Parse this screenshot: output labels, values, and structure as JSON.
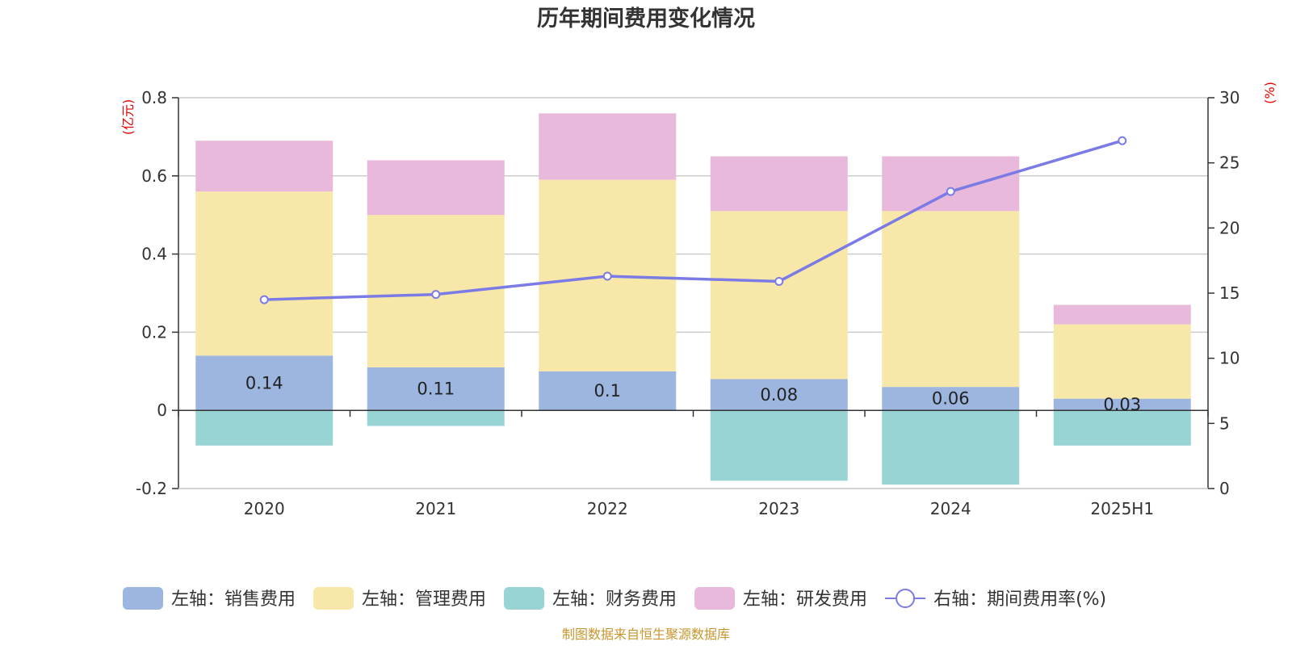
{
  "chart_data": {
    "type": "bar",
    "title": "历年期间费用变化情况",
    "categories": [
      "2020",
      "2021",
      "2022",
      "2023",
      "2024",
      "2025H1"
    ],
    "left_axis": {
      "unit": "(亿元)",
      "ylim": [
        -0.2,
        0.8
      ],
      "ticks": [
        "-0.2",
        "0",
        "0.2",
        "0.4",
        "0.6",
        "0.8"
      ]
    },
    "right_axis": {
      "unit": "(%)",
      "ylim": [
        0,
        30
      ],
      "ticks": [
        "0",
        "5",
        "10",
        "15",
        "20",
        "25",
        "30"
      ]
    },
    "series": [
      {
        "name": "左轴：销售费用",
        "type": "bar",
        "stacked": true,
        "color": "#9cb6e0",
        "values": [
          0.14,
          0.11,
          0.1,
          0.08,
          0.06,
          0.03
        ],
        "labels": [
          "0.14",
          "0.11",
          "0.1",
          "0.08",
          "0.06",
          "0.03"
        ]
      },
      {
        "name": "左轴：管理费用",
        "type": "bar",
        "stacked": true,
        "color": "#f7e7a8",
        "values": [
          0.42,
          0.39,
          0.49,
          0.43,
          0.45,
          0.19
        ]
      },
      {
        "name": "左轴：财务费用",
        "type": "bar",
        "stacked": true,
        "color": "#98d4d4",
        "values": [
          -0.09,
          -0.04,
          0,
          -0.18,
          -0.19,
          -0.09
        ]
      },
      {
        "name": "左轴：研发费用",
        "type": "bar",
        "stacked": true,
        "color": "#e8b9da",
        "values": [
          0.13,
          0.14,
          0.17,
          0.14,
          0.14,
          0.05
        ]
      },
      {
        "name": "右轴：期间费用率(%)",
        "type": "line",
        "axis": "right",
        "color": "#7b7be6",
        "values": [
          14.5,
          14.9,
          16.3,
          15.9,
          22.8,
          26.7
        ]
      }
    ],
    "grid": true,
    "legend_position": "bottom"
  },
  "source": "制图数据来自恒生聚源数据库"
}
